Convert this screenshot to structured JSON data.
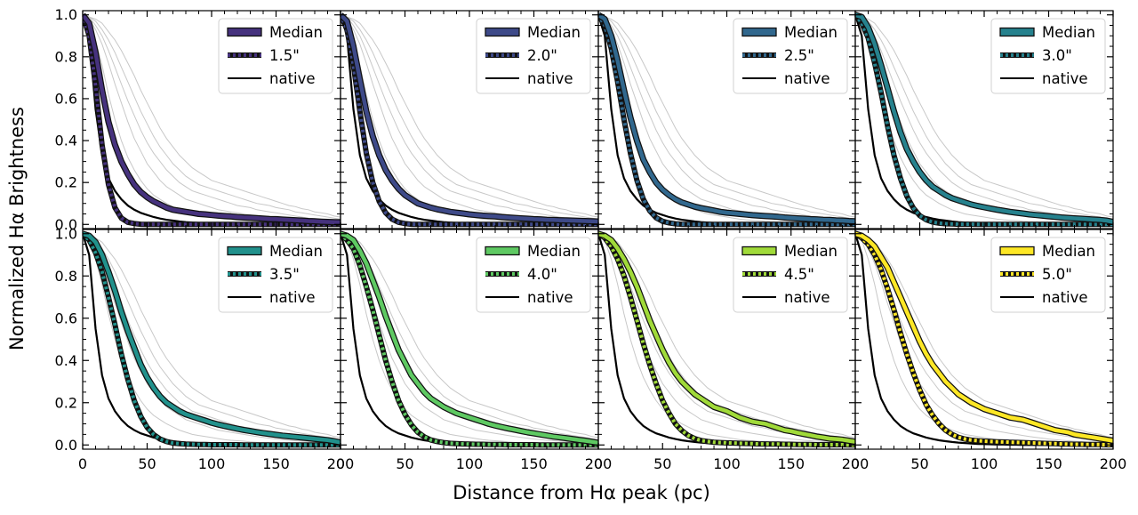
{
  "chart_data": {
    "type": "line",
    "layout": "2x4 grid of panels, shared axes",
    "xlabel": "Distance from Hα peak (pc)",
    "ylabel": "Normalized Hα Brightness",
    "xlim": [
      0,
      200
    ],
    "ylim": [
      0,
      1.0
    ],
    "xticks": [
      "0",
      "50",
      "100",
      "150",
      "200"
    ],
    "yticks": [
      "0.0",
      "0.2",
      "0.4",
      "0.6",
      "0.8",
      "1.0"
    ],
    "legend_position": "top-right",
    "grid": false,
    "x": [
      0,
      5,
      10,
      15,
      20,
      25,
      30,
      35,
      40,
      45,
      50,
      55,
      60,
      65,
      70,
      75,
      80,
      85,
      90,
      95,
      100,
      105,
      110,
      115,
      120,
      125,
      130,
      135,
      140,
      145,
      150,
      155,
      160,
      165,
      170,
      175,
      180,
      185,
      190,
      195,
      200
    ],
    "native_curve": [
      1.0,
      0.9,
      0.55,
      0.33,
      0.22,
      0.16,
      0.12,
      0.09,
      0.07,
      0.055,
      0.045,
      0.035,
      0.028,
      0.022,
      0.018,
      0.014,
      0.011,
      0.009,
      0.007,
      0.005,
      0.004,
      0.003,
      0.002,
      0.002,
      0.001,
      0.001,
      0,
      0,
      0,
      0,
      0,
      0,
      0,
      0,
      0,
      0,
      0,
      0,
      0,
      0,
      0
    ],
    "background_curves_description_values": {
      "bg1": [
        1.0,
        0.97,
        0.88,
        0.76,
        0.62,
        0.5,
        0.4,
        0.32,
        0.26,
        0.21,
        0.17,
        0.14,
        0.12,
        0.1,
        0.085,
        0.07,
        0.06,
        0.05,
        0.045,
        0.04,
        0.035,
        0.03,
        0.025,
        0.022,
        0.02,
        0.018,
        0.015,
        0.013,
        0.012,
        0.01,
        0.009,
        0.008,
        0.007,
        0.006,
        0.005,
        0.004,
        0.004,
        0.003,
        0.003,
        0.002,
        0.002
      ],
      "bg2": [
        1.0,
        0.98,
        0.93,
        0.86,
        0.77,
        0.67,
        0.58,
        0.49,
        0.41,
        0.35,
        0.29,
        0.25,
        0.21,
        0.18,
        0.16,
        0.14,
        0.12,
        0.11,
        0.1,
        0.09,
        0.08,
        0.07,
        0.065,
        0.06,
        0.055,
        0.05,
        0.045,
        0.04,
        0.036,
        0.032,
        0.028,
        0.025,
        0.022,
        0.02,
        0.018,
        0.016,
        0.014,
        0.012,
        0.01,
        0.009,
        0.008
      ],
      "bg3": [
        1.0,
        0.99,
        0.95,
        0.9,
        0.83,
        0.75,
        0.67,
        0.59,
        0.52,
        0.45,
        0.39,
        0.34,
        0.3,
        0.26,
        0.23,
        0.2,
        0.18,
        0.16,
        0.15,
        0.14,
        0.13,
        0.12,
        0.11,
        0.1,
        0.09,
        0.085,
        0.08,
        0.07,
        0.065,
        0.06,
        0.055,
        0.05,
        0.045,
        0.04,
        0.035,
        0.03,
        0.027,
        0.024,
        0.021,
        0.018,
        0.015
      ],
      "bg4": [
        1.0,
        0.99,
        0.97,
        0.93,
        0.88,
        0.82,
        0.75,
        0.68,
        0.61,
        0.54,
        0.48,
        0.42,
        0.37,
        0.33,
        0.29,
        0.26,
        0.23,
        0.21,
        0.19,
        0.18,
        0.17,
        0.16,
        0.15,
        0.14,
        0.13,
        0.12,
        0.11,
        0.1,
        0.095,
        0.09,
        0.08,
        0.075,
        0.07,
        0.06,
        0.055,
        0.05,
        0.045,
        0.04,
        0.035,
        0.03,
        0.025
      ],
      "bg5": [
        1.0,
        0.99,
        0.98,
        0.96,
        0.92,
        0.88,
        0.83,
        0.77,
        0.71,
        0.64,
        0.58,
        0.52,
        0.46,
        0.41,
        0.37,
        0.33,
        0.3,
        0.27,
        0.25,
        0.23,
        0.21,
        0.2,
        0.19,
        0.18,
        0.17,
        0.16,
        0.15,
        0.14,
        0.13,
        0.12,
        0.11,
        0.1,
        0.09,
        0.085,
        0.075,
        0.07,
        0.06,
        0.055,
        0.05,
        0.04,
        0.035
      ]
    },
    "panels": [
      {
        "legend": [
          "Median",
          "1.5\"",
          "native"
        ],
        "color": "#46327e",
        "median": [
          1.0,
          0.96,
          0.82,
          0.64,
          0.49,
          0.38,
          0.3,
          0.24,
          0.19,
          0.155,
          0.13,
          0.11,
          0.095,
          0.08,
          0.07,
          0.065,
          0.06,
          0.055,
          0.05,
          0.048,
          0.045,
          0.042,
          0.04,
          0.038,
          0.035,
          0.033,
          0.032,
          0.03,
          0.028,
          0.026,
          0.025,
          0.023,
          0.021,
          0.02,
          0.018,
          0.016,
          0.015,
          0.013,
          0.012,
          0.011,
          0.01
        ],
        "smoothed": [
          1.0,
          0.9,
          0.66,
          0.38,
          0.19,
          0.08,
          0.03,
          0.01,
          0.004,
          0.001,
          0,
          0,
          0,
          0,
          0,
          0,
          0,
          0,
          0,
          0,
          0,
          0,
          0,
          0,
          0,
          0,
          0,
          0,
          0,
          0,
          0,
          0,
          0,
          0,
          0,
          0,
          0,
          0,
          0,
          0,
          0
        ]
      },
      {
        "legend": [
          "Median",
          "2.0\"",
          "native"
        ],
        "color": "#3e4a89",
        "median": [
          1.0,
          0.97,
          0.85,
          0.69,
          0.54,
          0.42,
          0.33,
          0.26,
          0.21,
          0.17,
          0.14,
          0.12,
          0.1,
          0.09,
          0.08,
          0.072,
          0.066,
          0.06,
          0.056,
          0.052,
          0.048,
          0.045,
          0.042,
          0.04,
          0.038,
          0.035,
          0.033,
          0.031,
          0.029,
          0.027,
          0.025,
          0.024,
          0.022,
          0.021,
          0.02,
          0.019,
          0.018,
          0.017,
          0.016,
          0.015,
          0.014
        ],
        "smoothed": [
          1.0,
          0.93,
          0.76,
          0.54,
          0.34,
          0.2,
          0.11,
          0.055,
          0.025,
          0.01,
          0.004,
          0.001,
          0,
          0,
          0,
          0,
          0,
          0,
          0,
          0,
          0,
          0,
          0,
          0,
          0,
          0,
          0,
          0,
          0,
          0,
          0,
          0,
          0,
          0,
          0,
          0,
          0,
          0,
          0,
          0,
          0
        ]
      },
      {
        "legend": [
          "Median",
          "2.5\"",
          "native"
        ],
        "color": "#31688e",
        "median": [
          1.0,
          0.98,
          0.9,
          0.78,
          0.64,
          0.51,
          0.4,
          0.31,
          0.25,
          0.2,
          0.165,
          0.14,
          0.12,
          0.105,
          0.095,
          0.085,
          0.078,
          0.072,
          0.066,
          0.06,
          0.056,
          0.053,
          0.05,
          0.047,
          0.044,
          0.042,
          0.04,
          0.038,
          0.036,
          0.033,
          0.031,
          0.029,
          0.027,
          0.025,
          0.024,
          0.022,
          0.021,
          0.019,
          0.018,
          0.016,
          0.015
        ],
        "smoothed": [
          1.0,
          0.95,
          0.84,
          0.68,
          0.5,
          0.34,
          0.21,
          0.12,
          0.065,
          0.032,
          0.015,
          0.007,
          0.003,
          0.001,
          0,
          0,
          0,
          0,
          0,
          0,
          0,
          0,
          0,
          0,
          0,
          0,
          0,
          0,
          0,
          0,
          0,
          0,
          0,
          0,
          0,
          0,
          0,
          0,
          0,
          0,
          0
        ]
      },
      {
        "legend": [
          "Median",
          "3.0\"",
          "native"
        ],
        "color": "#26828e",
        "median": [
          1.0,
          0.99,
          0.94,
          0.86,
          0.76,
          0.65,
          0.54,
          0.44,
          0.36,
          0.3,
          0.25,
          0.21,
          0.18,
          0.16,
          0.14,
          0.125,
          0.115,
          0.105,
          0.095,
          0.088,
          0.082,
          0.076,
          0.07,
          0.065,
          0.06,
          0.056,
          0.052,
          0.048,
          0.045,
          0.042,
          0.039,
          0.036,
          0.033,
          0.031,
          0.029,
          0.027,
          0.025,
          0.023,
          0.021,
          0.018,
          0.012
        ],
        "smoothed": [
          1.0,
          0.96,
          0.89,
          0.77,
          0.63,
          0.47,
          0.33,
          0.22,
          0.135,
          0.078,
          0.042,
          0.022,
          0.011,
          0.006,
          0.003,
          0.002,
          0.001,
          0.001,
          0.001,
          0,
          0,
          0,
          0,
          0,
          0,
          0,
          0,
          0,
          0,
          0,
          0,
          0,
          0,
          0,
          0,
          0,
          0,
          0,
          0,
          0,
          0
        ]
      },
      {
        "legend": [
          "Median",
          "3.5\"",
          "native"
        ],
        "color": "#21918c",
        "median": [
          1.0,
          0.99,
          0.96,
          0.9,
          0.82,
          0.73,
          0.63,
          0.54,
          0.46,
          0.38,
          0.32,
          0.27,
          0.23,
          0.2,
          0.18,
          0.16,
          0.145,
          0.135,
          0.125,
          0.115,
          0.105,
          0.097,
          0.09,
          0.083,
          0.077,
          0.071,
          0.066,
          0.061,
          0.056,
          0.052,
          0.048,
          0.044,
          0.041,
          0.038,
          0.035,
          0.032,
          0.029,
          0.026,
          0.023,
          0.018,
          0.012
        ],
        "smoothed": [
          1.0,
          0.97,
          0.91,
          0.82,
          0.7,
          0.57,
          0.43,
          0.31,
          0.21,
          0.135,
          0.083,
          0.049,
          0.028,
          0.016,
          0.009,
          0.006,
          0.004,
          0.003,
          0.002,
          0.002,
          0.001,
          0.001,
          0.001,
          0.001,
          0.001,
          0,
          0,
          0,
          0,
          0,
          0,
          0,
          0,
          0,
          0,
          0,
          0,
          0,
          0,
          0,
          0
        ]
      },
      {
        "legend": [
          "Median",
          "4.0\"",
          "native"
        ],
        "color": "#5ec962",
        "median": [
          1.0,
          0.99,
          0.97,
          0.92,
          0.86,
          0.78,
          0.7,
          0.61,
          0.53,
          0.45,
          0.39,
          0.33,
          0.29,
          0.25,
          0.22,
          0.2,
          0.18,
          0.165,
          0.15,
          0.14,
          0.13,
          0.12,
          0.11,
          0.1,
          0.092,
          0.085,
          0.078,
          0.072,
          0.066,
          0.06,
          0.055,
          0.05,
          0.045,
          0.04,
          0.036,
          0.032,
          0.028,
          0.024,
          0.02,
          0.015,
          0.01
        ],
        "smoothed": [
          1.0,
          0.97,
          0.93,
          0.85,
          0.75,
          0.64,
          0.52,
          0.4,
          0.3,
          0.21,
          0.145,
          0.095,
          0.06,
          0.038,
          0.024,
          0.016,
          0.011,
          0.008,
          0.006,
          0.005,
          0.004,
          0.003,
          0.003,
          0.002,
          0.002,
          0.002,
          0.001,
          0.001,
          0.001,
          0.001,
          0.001,
          0,
          0,
          0,
          0,
          0,
          0,
          0,
          0,
          0,
          0
        ]
      },
      {
        "legend": [
          "Median",
          "4.5\"",
          "native"
        ],
        "color": "#a0da39",
        "median": [
          1.0,
          0.99,
          0.97,
          0.93,
          0.88,
          0.82,
          0.75,
          0.67,
          0.59,
          0.52,
          0.45,
          0.39,
          0.34,
          0.3,
          0.27,
          0.24,
          0.22,
          0.2,
          0.18,
          0.17,
          0.16,
          0.145,
          0.13,
          0.12,
          0.11,
          0.105,
          0.1,
          0.09,
          0.08,
          0.07,
          0.065,
          0.058,
          0.052,
          0.046,
          0.04,
          0.035,
          0.03,
          0.028,
          0.025,
          0.02,
          0.015
        ],
        "smoothed": [
          1.0,
          0.98,
          0.94,
          0.88,
          0.8,
          0.7,
          0.59,
          0.48,
          0.38,
          0.29,
          0.21,
          0.15,
          0.1,
          0.068,
          0.045,
          0.03,
          0.021,
          0.016,
          0.013,
          0.011,
          0.01,
          0.009,
          0.008,
          0.007,
          0.006,
          0.005,
          0.005,
          0.004,
          0.004,
          0.003,
          0.003,
          0.002,
          0.002,
          0.002,
          0.001,
          0.001,
          0.001,
          0.001,
          0.001,
          0,
          0
        ]
      },
      {
        "legend": [
          "Median",
          "5.0\"",
          "native"
        ],
        "color": "#fde725",
        "median": [
          1.0,
          0.99,
          0.97,
          0.94,
          0.89,
          0.84,
          0.77,
          0.7,
          0.63,
          0.56,
          0.49,
          0.43,
          0.38,
          0.34,
          0.3,
          0.27,
          0.24,
          0.22,
          0.2,
          0.185,
          0.17,
          0.16,
          0.15,
          0.14,
          0.13,
          0.125,
          0.12,
          0.11,
          0.1,
          0.09,
          0.08,
          0.07,
          0.065,
          0.06,
          0.05,
          0.045,
          0.04,
          0.035,
          0.03,
          0.025,
          0.02
        ],
        "smoothed": [
          1.0,
          0.98,
          0.95,
          0.9,
          0.83,
          0.74,
          0.64,
          0.53,
          0.43,
          0.34,
          0.26,
          0.19,
          0.14,
          0.1,
          0.07,
          0.05,
          0.036,
          0.028,
          0.023,
          0.02,
          0.018,
          0.016,
          0.015,
          0.014,
          0.013,
          0.012,
          0.011,
          0.01,
          0.009,
          0.008,
          0.007,
          0.006,
          0.005,
          0.004,
          0.003,
          0.003,
          0.002,
          0.002,
          0.002,
          0.001,
          0.001
        ]
      }
    ]
  }
}
